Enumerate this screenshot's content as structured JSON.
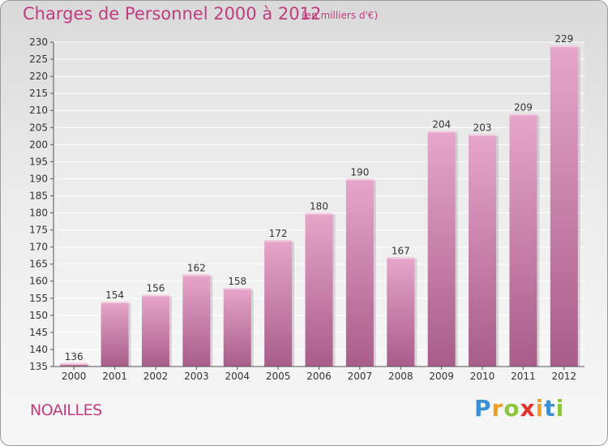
{
  "header": {
    "title": "Charges de Personnel 2000 à 2012",
    "subtitle": "(en milliers d'€)"
  },
  "footer": {
    "city": "NOAILLES",
    "logo": {
      "letters": [
        "P",
        "r",
        "o",
        "x",
        "i",
        "t",
        "i"
      ],
      "colors": [
        "#3a8fd6",
        "#f0a020",
        "#8cc63f",
        "#e8302a",
        "#f0a020",
        "#3a8fd6",
        "#8cc63f"
      ]
    }
  },
  "chart_data": {
    "type": "bar",
    "categories": [
      "2000",
      "2001",
      "2002",
      "2003",
      "2004",
      "2005",
      "2006",
      "2007",
      "2008",
      "2009",
      "2010",
      "2011",
      "2012"
    ],
    "values": [
      136,
      154,
      156,
      162,
      158,
      172,
      180,
      190,
      167,
      204,
      203,
      209,
      229
    ],
    "ylim": [
      135,
      230
    ],
    "yticks": [
      135,
      140,
      145,
      150,
      155,
      160,
      165,
      170,
      175,
      180,
      185,
      190,
      195,
      200,
      205,
      210,
      215,
      220,
      225,
      230
    ],
    "grid": true,
    "bar_color": "#d98bb5"
  }
}
